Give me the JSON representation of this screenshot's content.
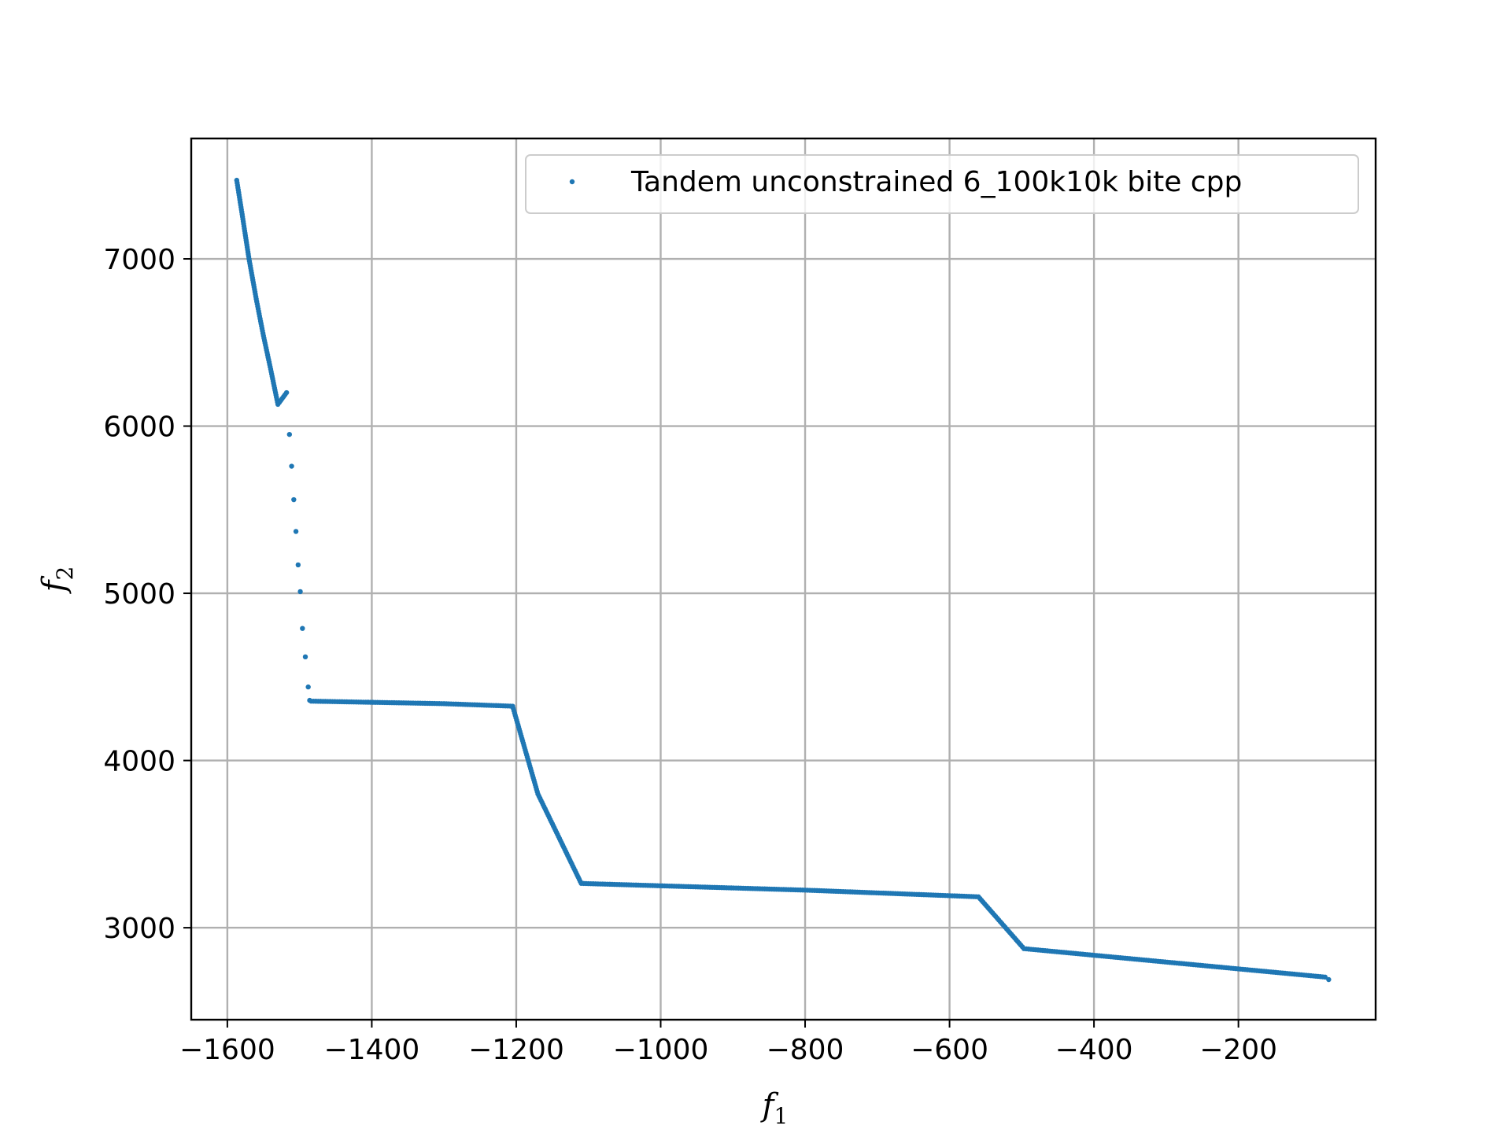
{
  "chart_data": {
    "type": "scatter",
    "title": "",
    "xlabel": "f",
    "xlabel_sub": "1",
    "ylabel": "f",
    "ylabel_sub": "2",
    "xlim": [
      -1650,
      -10
    ],
    "ylim": [
      2450,
      7720
    ],
    "xticks": [
      -1600,
      -1400,
      -1200,
      -1000,
      -800,
      -600,
      -400,
      -200
    ],
    "xtick_labels": [
      "−1600",
      "−1400",
      "−1200",
      "−1000",
      "−800",
      "−600",
      "−400",
      "−200"
    ],
    "yticks": [
      3000,
      4000,
      5000,
      6000,
      7000
    ],
    "ytick_labels": [
      "3000",
      "4000",
      "5000",
      "6000",
      "7000"
    ],
    "grid": true,
    "legend_position": "top-right",
    "series": [
      {
        "name": "Tandem unconstrained 6_100k10k bite cpp",
        "color": "#1f77b4",
        "x": [
          -1587,
          -1580,
          -1570,
          -1560,
          -1550,
          -1540,
          -1530,
          -1518,
          -1514,
          -1511,
          -1508,
          -1505,
          -1502,
          -1499,
          -1496,
          -1492,
          -1488,
          -1486,
          -1484,
          -1300,
          -1205,
          -1170,
          -1110,
          -800,
          -560,
          -497,
          -80,
          -75
        ],
        "y": [
          7470,
          7280,
          7000,
          6760,
          6540,
          6340,
          6130,
          6200,
          5950,
          5760,
          5560,
          5370,
          5170,
          5010,
          4790,
          4620,
          4440,
          4360,
          4355,
          4340,
          4325,
          3800,
          3265,
          3225,
          3185,
          2875,
          2705,
          2690
        ]
      }
    ]
  }
}
